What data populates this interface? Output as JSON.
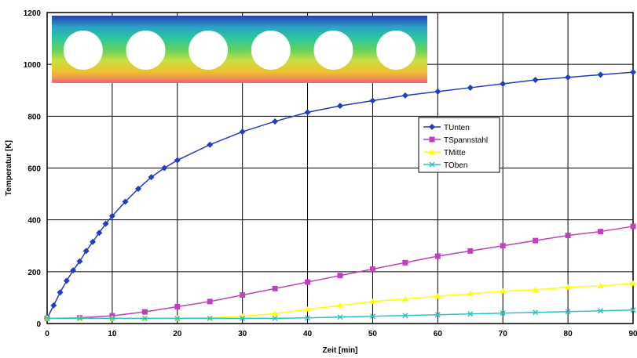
{
  "chart_data": {
    "type": "line",
    "xlabel": "Zeit [min]",
    "ylabel": "Temperatur [K]",
    "xlim": [
      0,
      90
    ],
    "ylim": [
      0,
      1200
    ],
    "xticks": [
      0,
      10,
      20,
      30,
      40,
      50,
      60,
      70,
      80,
      90
    ],
    "yticks": [
      0,
      200,
      400,
      600,
      800,
      1000,
      1200
    ],
    "grid": true,
    "legend_position": "center-right",
    "series": [
      {
        "name": "TUnten",
        "color": "#1f3fbf",
        "marker": "diamond",
        "x": [
          0,
          1,
          2,
          3,
          4,
          5,
          6,
          7,
          8,
          9,
          10,
          12,
          14,
          16,
          18,
          20,
          25,
          30,
          35,
          40,
          45,
          50,
          55,
          60,
          65,
          70,
          75,
          80,
          85,
          90
        ],
        "values": [
          20,
          70,
          120,
          165,
          205,
          240,
          280,
          315,
          350,
          385,
          415,
          470,
          520,
          565,
          600,
          630,
          690,
          740,
          780,
          815,
          840,
          860,
          880,
          895,
          910,
          925,
          940,
          950,
          960,
          970
        ]
      },
      {
        "name": "TSpannstahl",
        "color": "#c040c0",
        "marker": "square",
        "x": [
          0,
          5,
          10,
          15,
          20,
          25,
          30,
          35,
          40,
          45,
          50,
          55,
          60,
          65,
          70,
          75,
          80,
          85,
          90
        ],
        "values": [
          20,
          22,
          30,
          45,
          65,
          85,
          110,
          135,
          160,
          185,
          210,
          235,
          260,
          280,
          300,
          320,
          340,
          355,
          375
        ]
      },
      {
        "name": "TMitte",
        "color": "#ffff00",
        "marker": "triangle",
        "x": [
          0,
          5,
          10,
          15,
          20,
          25,
          30,
          35,
          40,
          45,
          50,
          55,
          60,
          65,
          70,
          75,
          80,
          85,
          90
        ],
        "values": [
          20,
          20,
          20,
          20,
          20,
          22,
          28,
          38,
          55,
          70,
          85,
          95,
          105,
          115,
          125,
          130,
          140,
          145,
          155
        ]
      },
      {
        "name": "TOben",
        "color": "#30c0c0",
        "marker": "x",
        "x": [
          0,
          5,
          10,
          15,
          20,
          25,
          30,
          35,
          40,
          45,
          50,
          55,
          60,
          65,
          70,
          75,
          80,
          85,
          90
        ],
        "values": [
          20,
          20,
          20,
          20,
          20,
          20,
          20,
          20,
          22,
          25,
          28,
          31,
          34,
          37,
          40,
          43,
          46,
          49,
          52
        ]
      }
    ]
  },
  "inset": {
    "description_name": "slab-temperature-image",
    "hole_count": 6,
    "gradient_colors": [
      "#2a3fb0",
      "#2aa0c8",
      "#2ac8a0",
      "#60d060",
      "#c8e040",
      "#f0c030",
      "#f07070"
    ]
  }
}
